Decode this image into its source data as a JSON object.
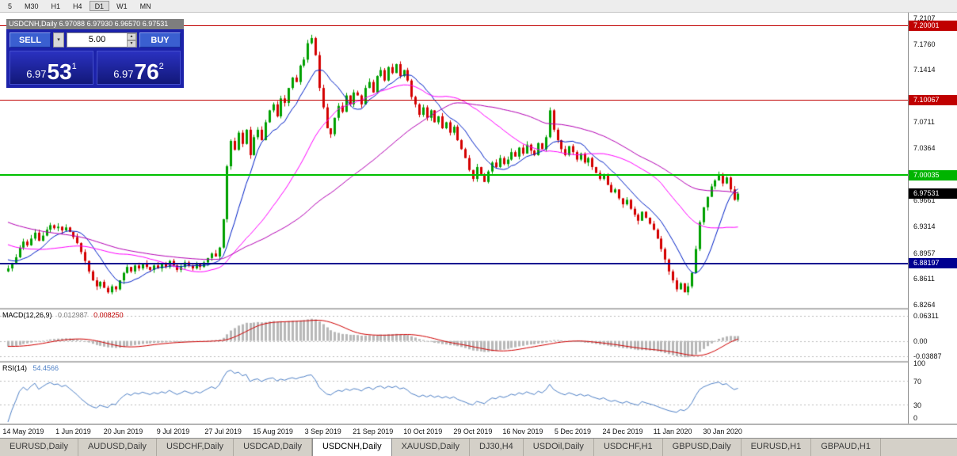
{
  "toolbar": {
    "timeframes": [
      "5",
      "M30",
      "H1",
      "H4",
      "D1",
      "W1",
      "MN"
    ],
    "active": "D1"
  },
  "header": {
    "symbol": "USDCNH,Daily",
    "open": "6.97088",
    "high": "6.97930",
    "low": "6.96570",
    "close": "6.97531"
  },
  "trade_panel": {
    "sell_label": "SELL",
    "buy_label": "BUY",
    "volume": "5.00",
    "sell_price": {
      "main": "6.97",
      "big": "53",
      "sup": "1"
    },
    "buy_price": {
      "main": "6.97",
      "big": "76",
      "sup": "2"
    }
  },
  "price_axis": {
    "grid_labels": [
      7.2107,
      7.176,
      7.1414,
      7.0711,
      7.0364,
      6.9661,
      6.9314,
      6.8957,
      6.8611,
      6.8264
    ],
    "boxes": [
      {
        "label": "7.20001",
        "value": 7.20001,
        "color": "#c00000"
      },
      {
        "label": "7.10067",
        "value": 7.10067,
        "color": "#c00000"
      },
      {
        "label": "7.00035",
        "value": 7.00035,
        "color": "#00b400"
      },
      {
        "label": "6.97531",
        "value": 6.97531,
        "color": "#000000"
      },
      {
        "label": "6.88197",
        "value": 6.88197,
        "color": "#000090"
      }
    ]
  },
  "hlines": [
    {
      "value": 7.20001,
      "color": "#c00000",
      "width": 1
    },
    {
      "value": 7.10067,
      "color": "#c00000",
      "width": 1
    },
    {
      "value": 7.00035,
      "color": "#00c000",
      "width": 2
    },
    {
      "value": 6.88197,
      "color": "#000090",
      "width": 2
    }
  ],
  "chart_data": {
    "type": "candlestick",
    "title": "USDCNH,Daily",
    "price_range": [
      6.822,
      7.218
    ],
    "x_labels": [
      "14 May 2019",
      "1 Jun 2019",
      "20 Jun 2019",
      "9 Jul 2019",
      "27 Jul 2019",
      "15 Aug 2019",
      "3 Sep 2019",
      "21 Sep 2019",
      "10 Oct 2019",
      "29 Oct 2019",
      "16 Nov 2019",
      "5 Dec 2019",
      "24 Dec 2019",
      "11 Jan 2020",
      "30 Jan 2020"
    ],
    "first_label_index": 4,
    "label_step": 13,
    "up_color": "#00a000",
    "down_color": "#d40000",
    "ma_overlays": [
      {
        "period": 10,
        "color": "#0020c8"
      },
      {
        "period": 30,
        "color": "#ff00ff"
      },
      {
        "period": 60,
        "color": "#b400b4"
      }
    ],
    "warmup": {
      "start": 6.998,
      "step": -0.002,
      "count": 60
    },
    "closes": [
      6.875,
      6.882,
      6.89,
      6.903,
      6.911,
      6.906,
      6.915,
      6.923,
      6.912,
      6.919,
      6.927,
      6.933,
      6.929,
      6.931,
      6.926,
      6.93,
      6.924,
      6.917,
      6.909,
      6.897,
      6.885,
      6.871,
      6.859,
      6.851,
      6.857,
      6.849,
      6.843,
      6.851,
      6.847,
      6.859,
      6.869,
      6.877,
      6.871,
      6.879,
      6.875,
      6.881,
      6.877,
      6.873,
      6.879,
      6.875,
      6.881,
      6.877,
      6.885,
      6.879,
      6.873,
      6.877,
      6.883,
      6.879,
      6.875,
      6.881,
      6.877,
      6.883,
      6.889,
      6.895,
      6.891,
      6.903,
      6.941,
      7.012,
      7.046,
      7.034,
      7.057,
      7.042,
      7.061,
      7.027,
      7.051,
      7.061,
      7.047,
      7.071,
      7.087,
      7.095,
      7.079,
      7.103,
      7.097,
      7.117,
      7.131,
      7.125,
      7.147,
      7.155,
      7.177,
      7.184,
      7.161,
      7.117,
      7.091,
      7.063,
      7.055,
      7.077,
      7.093,
      7.085,
      7.107,
      7.095,
      7.111,
      7.107,
      7.095,
      7.117,
      7.125,
      7.111,
      7.133,
      7.141,
      7.127,
      7.145,
      7.137,
      7.149,
      7.133,
      7.141,
      7.127,
      7.105,
      7.095,
      7.081,
      7.091,
      7.077,
      7.087,
      7.071,
      7.079,
      7.063,
      7.071,
      7.057,
      7.065,
      7.047,
      7.035,
      7.023,
      7.007,
      6.995,
      7.011,
      7.001,
      6.991,
      7.005,
      7.017,
      7.011,
      7.023,
      7.015,
      7.021,
      7.031,
      7.025,
      7.037,
      7.029,
      7.041,
      7.033,
      7.027,
      7.043,
      7.035,
      7.051,
      7.087,
      7.061,
      7.047,
      7.035,
      7.027,
      7.039,
      7.031,
      7.021,
      7.029,
      7.017,
      7.023,
      7.011,
      7.003,
      6.995,
      7.001,
      6.987,
      6.977,
      6.981,
      6.969,
      6.961,
      6.967,
      6.955,
      6.947,
      6.939,
      6.951,
      6.943,
      6.935,
      6.927,
      6.915,
      6.901,
      6.887,
      6.871,
      6.859,
      6.847,
      6.855,
      6.843,
      6.851,
      6.869,
      6.901,
      6.937,
      6.957,
      6.971,
      6.985,
      6.993,
      7.001,
      6.989,
      6.997,
      6.981,
      6.967,
      6.9753
    ]
  },
  "macd_panel": {
    "title": "MACD(12,26,9)",
    "value_main": "0.012987",
    "value_signal": "0.008250",
    "fast": 12,
    "slow": 26,
    "signal": 9,
    "range": [
      -0.05,
      0.078
    ],
    "axis_labels": [
      {
        "label": "0.06311",
        "value": 0.06311
      },
      {
        "label": "0.00",
        "value": 0
      },
      {
        "label": "-0.03887",
        "value": -0.03887
      }
    ],
    "hist_color": "#b8b8b8",
    "signal_color": "#d00000"
  },
  "rsi_panel": {
    "title": "RSI(14)",
    "value": "54.4566",
    "period": 14,
    "levels": [
      70,
      30
    ],
    "axis_labels": [
      {
        "label": "100",
        "value": 100
      },
      {
        "label": "70",
        "value": 70
      },
      {
        "label": "30",
        "value": 30
      },
      {
        "label": "0",
        "value": 0
      }
    ],
    "line_color": "#4f81c7"
  },
  "tabs": {
    "items": [
      "EURUSD,Daily",
      "AUDUSD,Daily",
      "USDCHF,Daily",
      "USDCAD,Daily",
      "USDCNH,Daily",
      "XAUUSD,Daily",
      "DJ30,H4",
      "USDOil,Daily",
      "USDCHF,H1",
      "GBPUSD,Daily",
      "EURUSD,H1",
      "GBPAUD,H1"
    ],
    "active": "USDCNH,Daily"
  }
}
